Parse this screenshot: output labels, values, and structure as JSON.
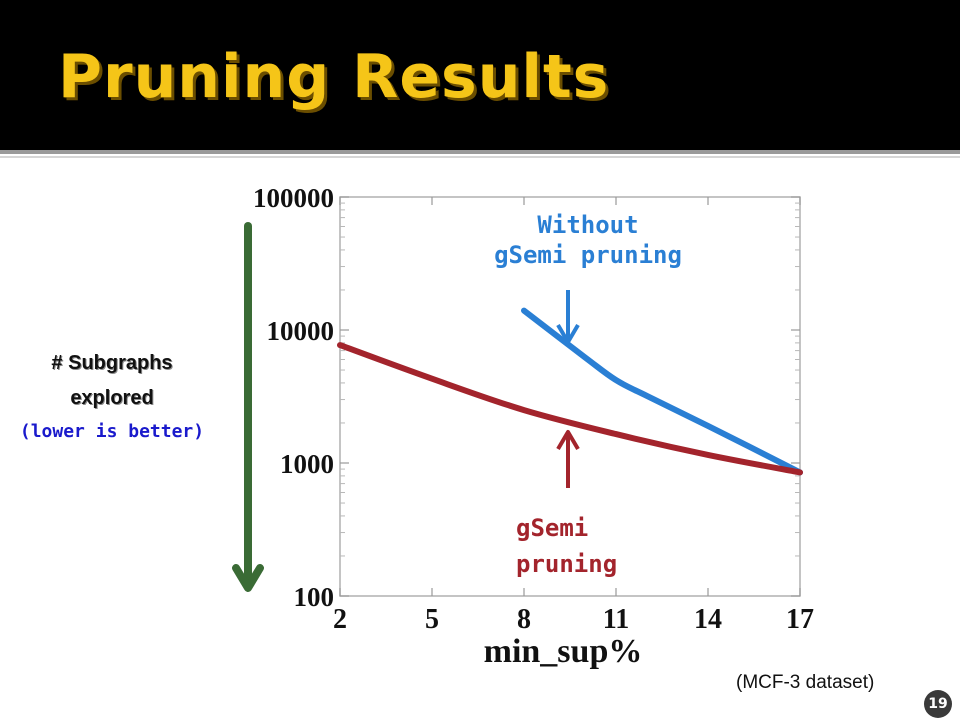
{
  "slide": {
    "title": "Pruning Results",
    "page_number": "19",
    "dataset_note": "(MCF-3 dataset)",
    "ylabel_line1": "# Subgraphs",
    "ylabel_line2": "explored",
    "ylabel_note": "(lower is better)",
    "annotation_without_line1": "Without",
    "annotation_without_line2": "gSemi pruning",
    "annotation_with_line1": "gSemi",
    "annotation_with_line2": "pruning",
    "colors": {
      "title": "#f5c518",
      "without_series": "#2a7fd4",
      "with_series": "#a3242c",
      "down_arrow": "#3a6b35",
      "note_blue": "#1a1acc"
    }
  },
  "chart_data": {
    "type": "line",
    "xlabel": "min_sup%",
    "ylabel": "# Subgraphs explored",
    "x_ticks": [
      2,
      5,
      8,
      11,
      14,
      17
    ],
    "y_ticks": [
      100,
      1000,
      10000,
      100000
    ],
    "y_tick_labels": [
      "100",
      "1000",
      "10000",
      "100000"
    ],
    "xlim": [
      2,
      17
    ],
    "ylim": [
      100,
      100000
    ],
    "y_scale": "log",
    "grid": false,
    "series": [
      {
        "name": "gSemi pruning",
        "color": "#a3242c",
        "x": [
          2,
          5,
          8,
          11,
          14,
          17
        ],
        "values": [
          7700,
          4300,
          2500,
          1650,
          1150,
          850
        ]
      },
      {
        "name": "Without gSemi pruning",
        "color": "#2a7fd4",
        "x": [
          8,
          10,
          11,
          12,
          14,
          17
        ],
        "values": [
          14000,
          6200,
          4200,
          3200,
          1900,
          850
        ]
      }
    ]
  }
}
